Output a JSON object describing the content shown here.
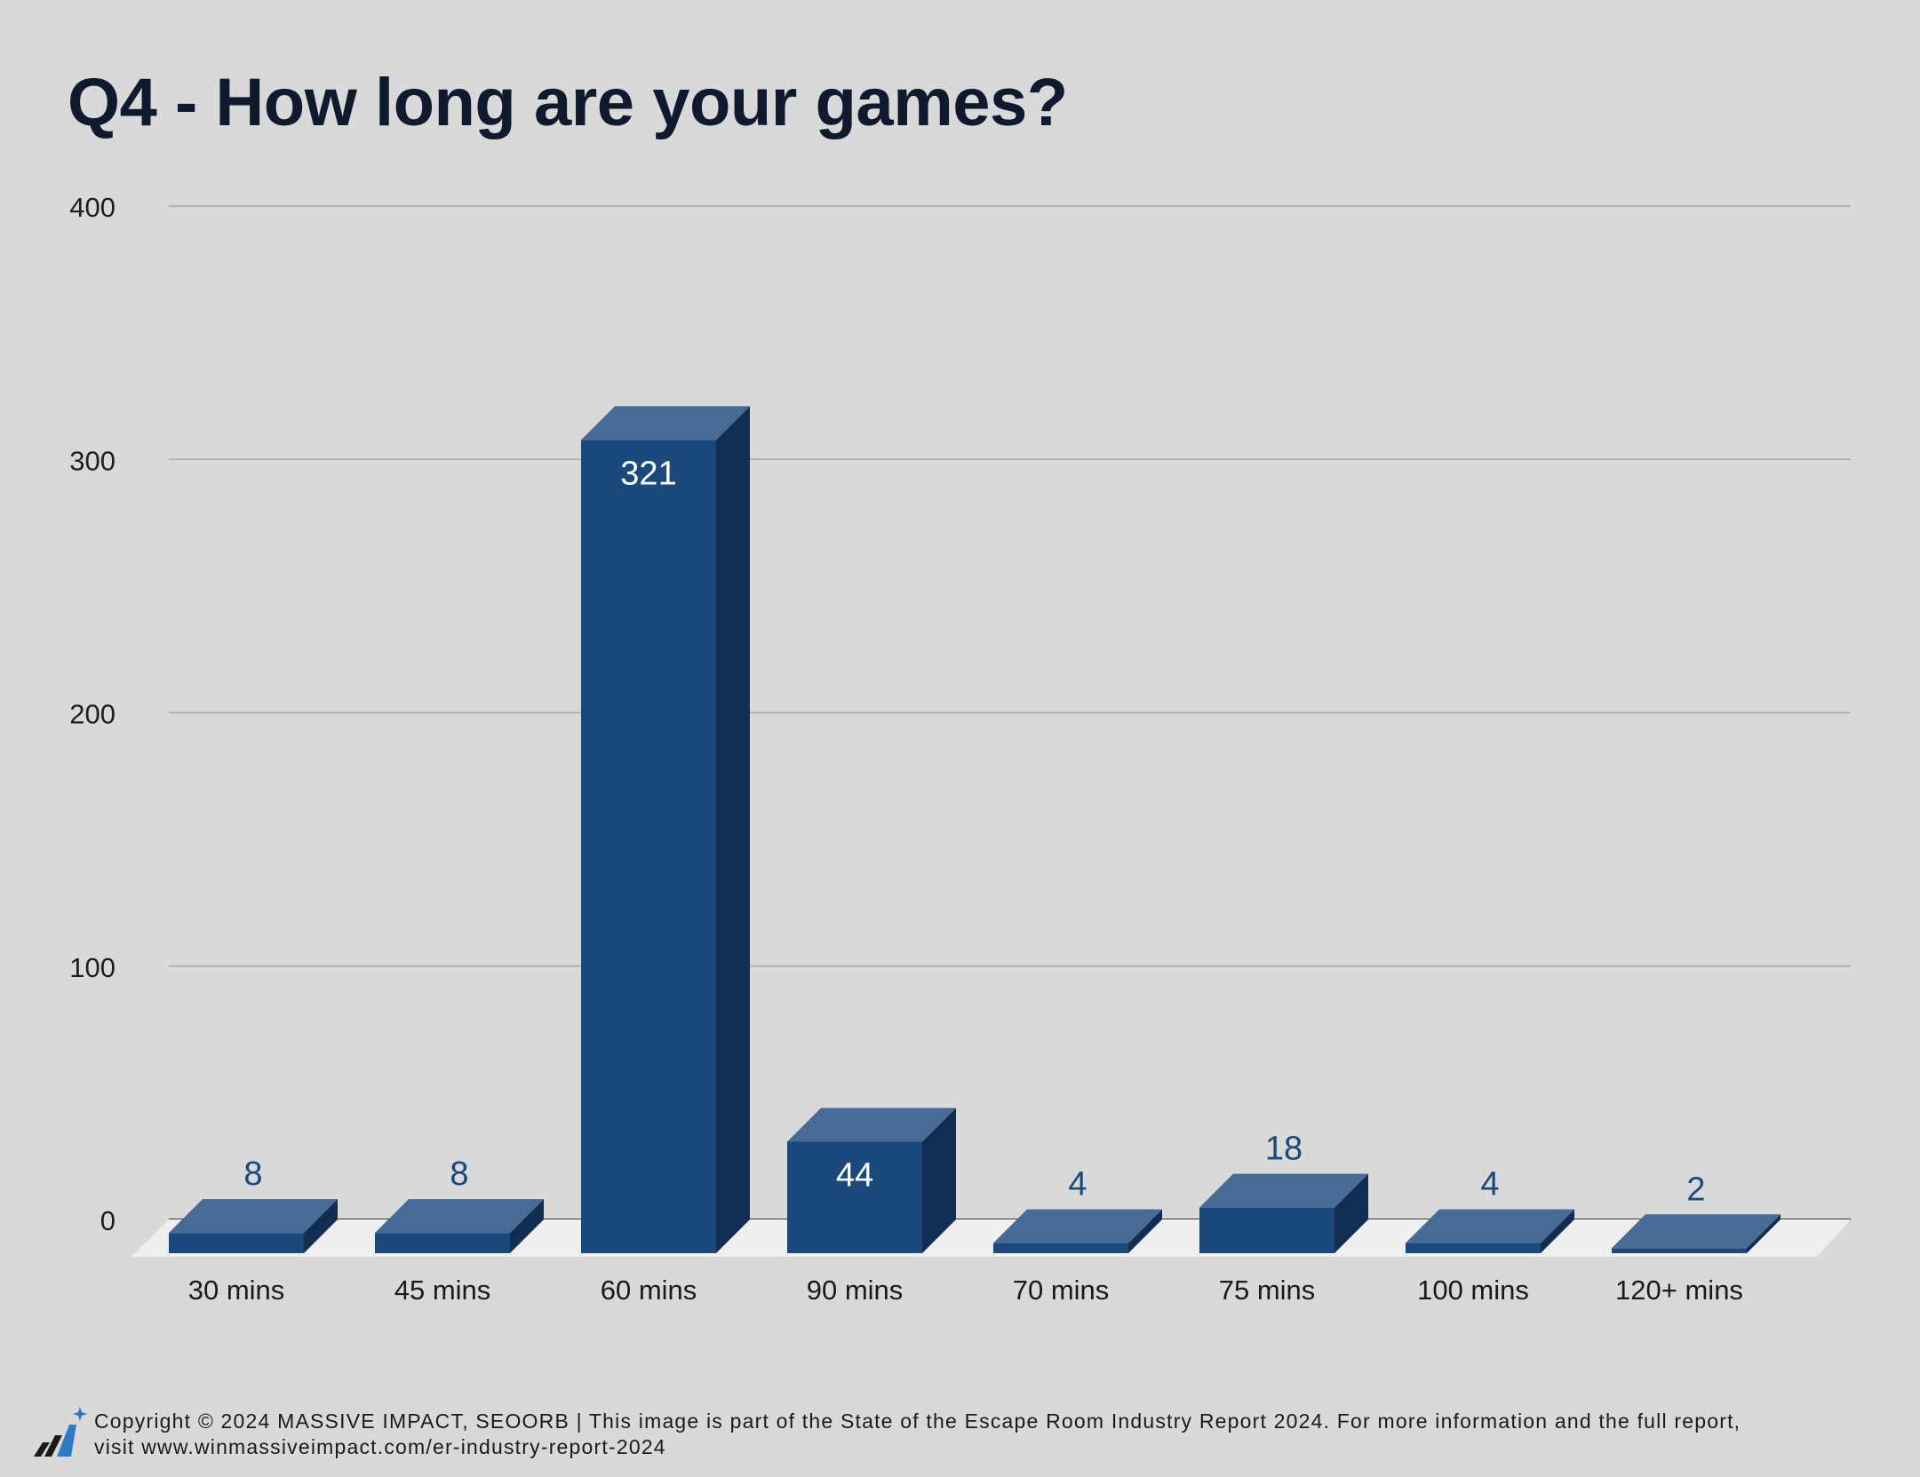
{
  "chart_data": {
    "type": "bar",
    "title": "Q4 - How long are your games?",
    "categories": [
      "30 mins",
      "45 mins",
      "60 mins",
      "90 mins",
      "70 mins",
      "75 mins",
      "100 mins",
      "120+ mins"
    ],
    "values": [
      8,
      8,
      321,
      44,
      4,
      18,
      4,
      2
    ],
    "ylim": [
      0,
      400
    ],
    "yticks": [
      0,
      100,
      200,
      300,
      400
    ],
    "grid": true,
    "style": "3d",
    "colors": {
      "bar_front": "#1b497c",
      "bar_top": "#476b95",
      "bar_side": "#112d51",
      "label_outside": "#1b497c",
      "label_inside": "#ffffff",
      "floor": "#efefef",
      "gridline": "#a8a8a8"
    }
  },
  "footer": {
    "line1": "Copyright © 2024 MASSIVE IMPACT, SEOORB | This image is part of the State of the Escape Room Industry Report 2024. For more information and the full report,",
    "line2": "visit www.winmassiveimpact.com/er-industry-report-2024",
    "logo_icon": "bar-chart-sparkle-icon"
  }
}
